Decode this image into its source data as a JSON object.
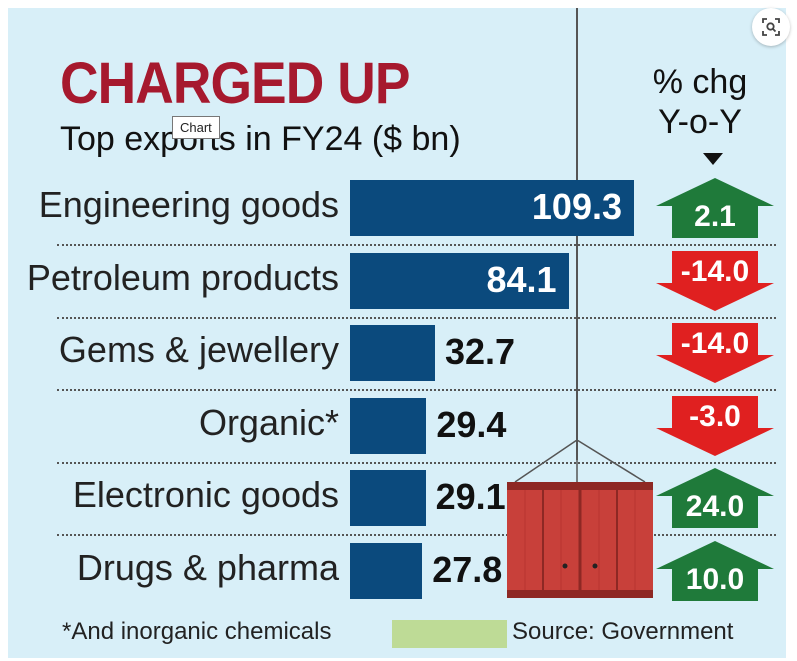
{
  "tooltip": "Chart",
  "colors": {
    "bar": "#0b4a7d",
    "up": "#1f7a3a",
    "down": "#e02020",
    "title": "#a6192e",
    "panel": "#d8eff8"
  },
  "chart_data": {
    "type": "bar",
    "title": "CHARGED UP",
    "subtitle": "Top exports in FY24 ($ bn)",
    "change_header_line1": "% chg",
    "change_header_line2": "Y-o-Y",
    "categories": [
      "Engineering goods",
      "Petroleum products",
      "Gems & jewellery",
      "Organic*",
      "Electronic goods",
      "Drugs & pharma"
    ],
    "values": [
      109.3,
      84.1,
      32.7,
      29.4,
      29.1,
      27.8
    ],
    "value_labels": [
      "109.3",
      "84.1",
      "32.7",
      "29.4",
      "29.1",
      "27.8"
    ],
    "yoy_change": [
      2.1,
      -14.0,
      -14.0,
      -3.0,
      24.0,
      10.0
    ],
    "yoy_labels": [
      "2.1",
      "-14.0",
      "-14.0",
      "-3.0",
      "24.0",
      "10.0"
    ],
    "xlim": [
      0,
      109.3
    ],
    "footnote": "*And inorganic chemicals",
    "source": "Source: Government"
  }
}
